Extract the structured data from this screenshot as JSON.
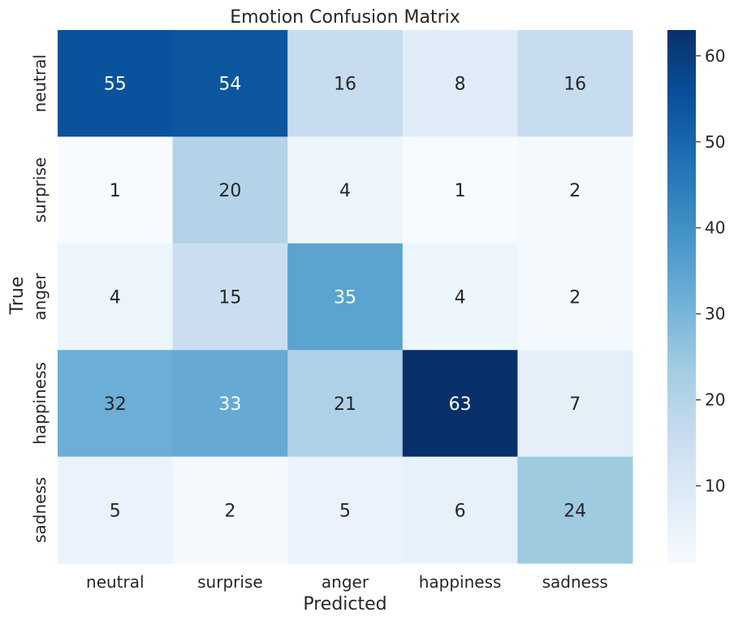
{
  "chart_data": {
    "type": "heatmap",
    "title": "Emotion Confusion Matrix",
    "xlabel": "Predicted",
    "ylabel": "True",
    "x_categories": [
      "neutral",
      "surprise",
      "anger",
      "happiness",
      "sadness"
    ],
    "y_categories": [
      "neutral",
      "surprise",
      "anger",
      "happiness",
      "sadness"
    ],
    "values": [
      [
        55,
        54,
        16,
        8,
        16
      ],
      [
        1,
        20,
        4,
        1,
        2
      ],
      [
        4,
        15,
        35,
        4,
        2
      ],
      [
        32,
        33,
        21,
        63,
        7
      ],
      [
        5,
        2,
        5,
        6,
        24
      ]
    ],
    "colormap": "Blues",
    "vmin": 1,
    "vmax": 63,
    "colorbar_ticks": [
      10,
      20,
      30,
      40,
      50,
      60
    ],
    "annotated": true
  }
}
